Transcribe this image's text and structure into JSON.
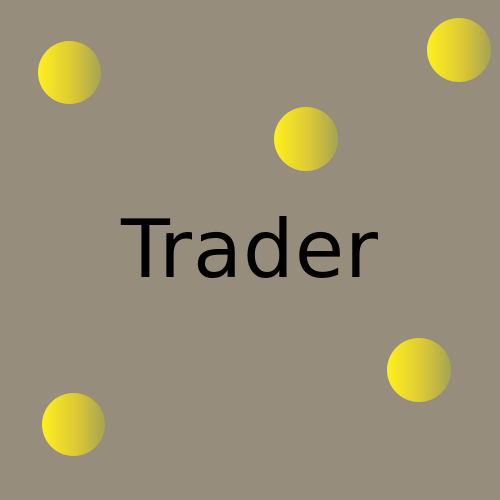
{
  "title": "Trader",
  "colors": {
    "background": "#978d7c",
    "coin_light": "#fff01e",
    "coin_dark": "#a6a355",
    "text": "#000000"
  },
  "coins": [
    {
      "icon": "coin-icon"
    },
    {
      "icon": "coin-icon"
    },
    {
      "icon": "coin-icon"
    },
    {
      "icon": "coin-icon"
    },
    {
      "icon": "coin-icon"
    }
  ]
}
